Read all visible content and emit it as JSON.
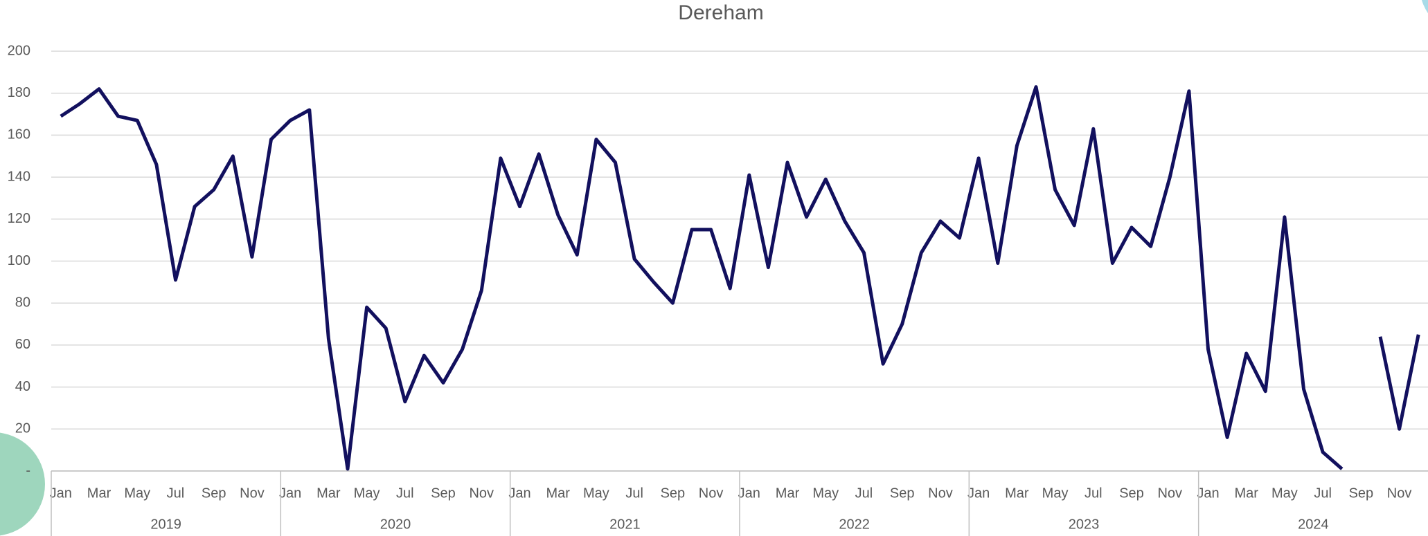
{
  "chart_data": {
    "type": "line",
    "title": "Dereham",
    "categories": [
      "Jan",
      null,
      "Mar",
      null,
      "May",
      null,
      "Jul",
      null,
      "Sep",
      null,
      "Nov",
      null,
      "Jan",
      null,
      "Mar",
      null,
      "May",
      null,
      "Jul",
      null,
      "Sep",
      null,
      "Nov",
      null,
      "Jan",
      null,
      "Mar",
      null,
      "May",
      null,
      "Jul",
      null,
      "Sep",
      null,
      "Nov",
      null,
      "Jan",
      null,
      "Mar",
      null,
      "May",
      null,
      "Jul",
      null,
      "Sep",
      null,
      "Nov",
      null,
      "Jan",
      null,
      "Mar",
      null,
      "May",
      null,
      "Jul",
      null,
      "Sep",
      null,
      "Nov",
      null,
      "Jan",
      null,
      "Mar",
      null,
      "May",
      null,
      "Jul",
      null,
      "Sep",
      null,
      "Nov",
      null
    ],
    "years": [
      "2019",
      "2020",
      "2021",
      "2022",
      "2023",
      "2024"
    ],
    "series": [
      {
        "name": "Dereham",
        "color": "#12105e",
        "values": [
          169,
          175,
          182,
          169,
          167,
          146,
          91,
          126,
          134,
          150,
          102,
          158,
          167,
          172,
          63,
          1,
          78,
          68,
          33,
          55,
          42,
          58,
          86,
          149,
          126,
          151,
          122,
          103,
          158,
          147,
          101,
          90,
          80,
          115,
          115,
          87,
          141,
          97,
          147,
          121,
          139,
          119,
          104,
          51,
          70,
          104,
          119,
          111,
          149,
          99,
          155,
          183,
          134,
          117,
          163,
          99,
          116,
          107,
          140,
          181,
          58,
          16,
          56,
          38,
          121,
          39,
          9,
          1,
          null,
          64,
          20,
          65
        ]
      }
    ],
    "ylim": [
      0,
      200
    ],
    "yticks": [
      {
        "value": 0,
        "label": "-"
      },
      20,
      40,
      60,
      80,
      100,
      120,
      140,
      160,
      180,
      200
    ],
    "grid": true
  }
}
